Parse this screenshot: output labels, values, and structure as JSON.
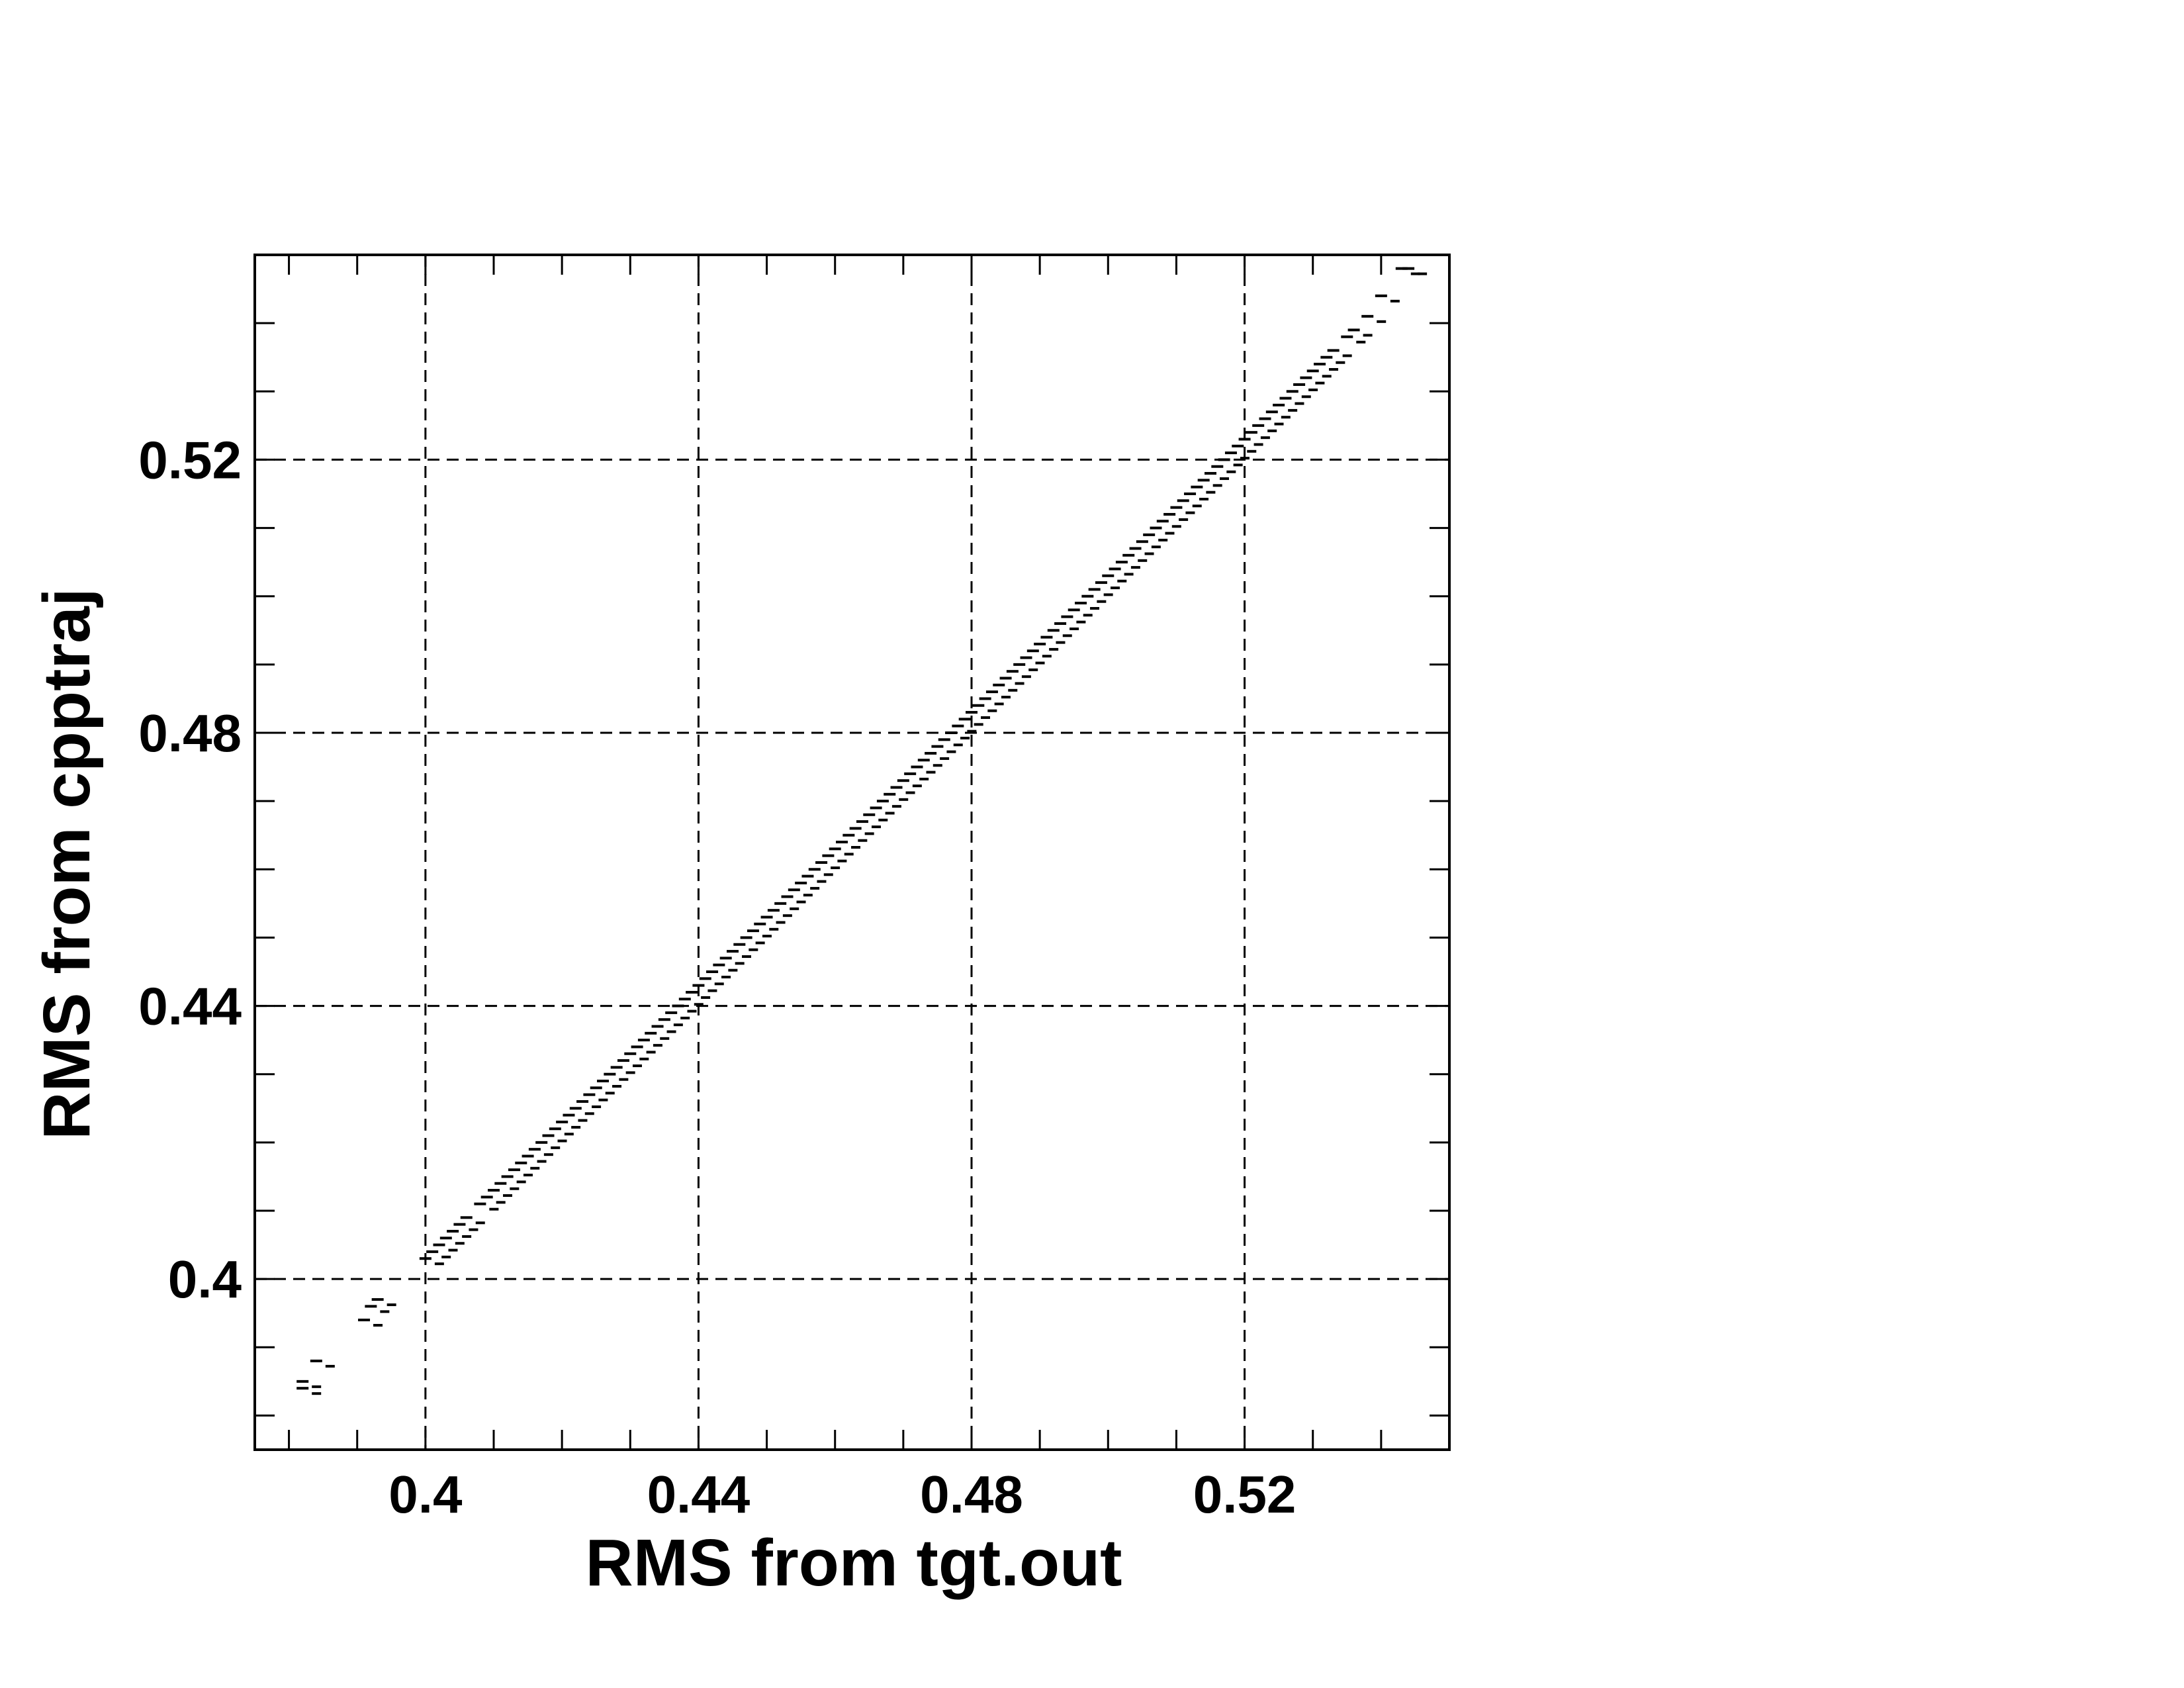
{
  "chart_data": {
    "type": "scatter",
    "title": "",
    "xlabel": "RMS from tgt.out",
    "ylabel": "RMS from cpptraj",
    "xlim": [
      0.375,
      0.55
    ],
    "ylim": [
      0.375,
      0.55
    ],
    "x_major_ticks": [
      0.4,
      0.44,
      0.48,
      0.52
    ],
    "x_tick_labels": [
      "0.4",
      "0.44",
      "0.48",
      "0.52"
    ],
    "y_major_ticks": [
      0.4,
      0.44,
      0.48,
      0.52
    ],
    "y_tick_labels": [
      "0.4",
      "0.44",
      "0.48",
      "0.52"
    ],
    "minor_tick_step": 0.01,
    "grid": true,
    "grid_style": "dashed",
    "legend": "none",
    "colors": {
      "points": "#000000",
      "grid": "#000000",
      "frame": "#000000"
    },
    "series": [
      {
        "points": [
          [
            0.382,
            0.384
          ],
          [
            0.382,
            0.385
          ],
          [
            0.384,
            0.388
          ],
          [
            0.391,
            0.394
          ],
          [
            0.392,
            0.396
          ],
          [
            0.393,
            0.397
          ],
          [
            0.4,
            0.403
          ],
          [
            0.401,
            0.404
          ],
          [
            0.402,
            0.405
          ],
          [
            0.403,
            0.406
          ],
          [
            0.404,
            0.407
          ],
          [
            0.405,
            0.408
          ],
          [
            0.406,
            0.409
          ],
          [
            0.408,
            0.411
          ],
          [
            0.409,
            0.412
          ],
          [
            0.41,
            0.413
          ],
          [
            0.411,
            0.414
          ],
          [
            0.412,
            0.415
          ],
          [
            0.413,
            0.416
          ],
          [
            0.414,
            0.417
          ],
          [
            0.415,
            0.418
          ],
          [
            0.416,
            0.419
          ],
          [
            0.417,
            0.42
          ],
          [
            0.418,
            0.421
          ],
          [
            0.419,
            0.422
          ],
          [
            0.42,
            0.423
          ],
          [
            0.421,
            0.424
          ],
          [
            0.422,
            0.425
          ],
          [
            0.423,
            0.426
          ],
          [
            0.424,
            0.427
          ],
          [
            0.425,
            0.428
          ],
          [
            0.426,
            0.429
          ],
          [
            0.427,
            0.43
          ],
          [
            0.428,
            0.431
          ],
          [
            0.429,
            0.432
          ],
          [
            0.43,
            0.433
          ],
          [
            0.431,
            0.434
          ],
          [
            0.432,
            0.435
          ],
          [
            0.433,
            0.436
          ],
          [
            0.434,
            0.437
          ],
          [
            0.435,
            0.438
          ],
          [
            0.436,
            0.439
          ],
          [
            0.437,
            0.44
          ],
          [
            0.438,
            0.441
          ],
          [
            0.439,
            0.442
          ],
          [
            0.44,
            0.443
          ],
          [
            0.441,
            0.444
          ],
          [
            0.442,
            0.445
          ],
          [
            0.443,
            0.446
          ],
          [
            0.444,
            0.447
          ],
          [
            0.445,
            0.448
          ],
          [
            0.446,
            0.449
          ],
          [
            0.447,
            0.45
          ],
          [
            0.448,
            0.451
          ],
          [
            0.449,
            0.452
          ],
          [
            0.45,
            0.453
          ],
          [
            0.451,
            0.454
          ],
          [
            0.452,
            0.455
          ],
          [
            0.453,
            0.456
          ],
          [
            0.454,
            0.457
          ],
          [
            0.455,
            0.458
          ],
          [
            0.456,
            0.459
          ],
          [
            0.457,
            0.46
          ],
          [
            0.458,
            0.461
          ],
          [
            0.459,
            0.462
          ],
          [
            0.46,
            0.463
          ],
          [
            0.461,
            0.464
          ],
          [
            0.462,
            0.465
          ],
          [
            0.463,
            0.466
          ],
          [
            0.464,
            0.467
          ],
          [
            0.465,
            0.468
          ],
          [
            0.466,
            0.469
          ],
          [
            0.467,
            0.47
          ],
          [
            0.468,
            0.471
          ],
          [
            0.469,
            0.472
          ],
          [
            0.47,
            0.473
          ],
          [
            0.471,
            0.474
          ],
          [
            0.472,
            0.475
          ],
          [
            0.473,
            0.476
          ],
          [
            0.474,
            0.477
          ],
          [
            0.475,
            0.478
          ],
          [
            0.476,
            0.479
          ],
          [
            0.477,
            0.48
          ],
          [
            0.478,
            0.481
          ],
          [
            0.479,
            0.482
          ],
          [
            0.48,
            0.483
          ],
          [
            0.481,
            0.484
          ],
          [
            0.482,
            0.485
          ],
          [
            0.483,
            0.486
          ],
          [
            0.484,
            0.487
          ],
          [
            0.485,
            0.488
          ],
          [
            0.486,
            0.489
          ],
          [
            0.487,
            0.49
          ],
          [
            0.488,
            0.491
          ],
          [
            0.489,
            0.492
          ],
          [
            0.49,
            0.493
          ],
          [
            0.491,
            0.494
          ],
          [
            0.492,
            0.495
          ],
          [
            0.493,
            0.496
          ],
          [
            0.494,
            0.497
          ],
          [
            0.495,
            0.498
          ],
          [
            0.496,
            0.499
          ],
          [
            0.497,
            0.5
          ],
          [
            0.498,
            0.501
          ],
          [
            0.499,
            0.502
          ],
          [
            0.5,
            0.503
          ],
          [
            0.501,
            0.504
          ],
          [
            0.502,
            0.505
          ],
          [
            0.503,
            0.506
          ],
          [
            0.504,
            0.507
          ],
          [
            0.505,
            0.508
          ],
          [
            0.506,
            0.509
          ],
          [
            0.507,
            0.51
          ],
          [
            0.508,
            0.511
          ],
          [
            0.509,
            0.512
          ],
          [
            0.51,
            0.513
          ],
          [
            0.511,
            0.514
          ],
          [
            0.512,
            0.515
          ],
          [
            0.513,
            0.516
          ],
          [
            0.514,
            0.517
          ],
          [
            0.515,
            0.518
          ],
          [
            0.516,
            0.519
          ],
          [
            0.517,
            0.52
          ],
          [
            0.518,
            0.521
          ],
          [
            0.519,
            0.522
          ],
          [
            0.52,
            0.523
          ],
          [
            0.521,
            0.524
          ],
          [
            0.522,
            0.525
          ],
          [
            0.523,
            0.526
          ],
          [
            0.524,
            0.527
          ],
          [
            0.525,
            0.528
          ],
          [
            0.526,
            0.529
          ],
          [
            0.527,
            0.53
          ],
          [
            0.528,
            0.531
          ],
          [
            0.529,
            0.532
          ],
          [
            0.53,
            0.533
          ],
          [
            0.531,
            0.534
          ],
          [
            0.532,
            0.535
          ],
          [
            0.533,
            0.536
          ],
          [
            0.535,
            0.538
          ],
          [
            0.536,
            0.539
          ],
          [
            0.538,
            0.541
          ],
          [
            0.54,
            0.544
          ],
          [
            0.543,
            0.548
          ],
          [
            0.544,
            0.548
          ]
        ]
      }
    ]
  }
}
